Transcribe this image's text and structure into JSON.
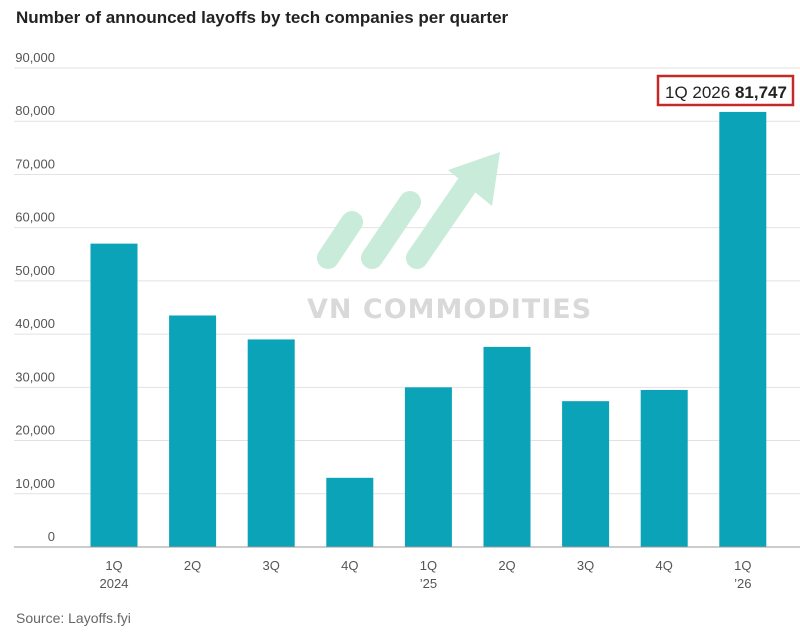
{
  "chart_data": {
    "type": "bar",
    "title": "Number of announced layoffs by tech companies per quarter",
    "categories": [
      {
        "line1": "1Q",
        "line2": "2024"
      },
      {
        "line1": "2Q",
        "line2": ""
      },
      {
        "line1": "3Q",
        "line2": ""
      },
      {
        "line1": "4Q",
        "line2": ""
      },
      {
        "line1": "1Q",
        "line2": "’25"
      },
      {
        "line1": "2Q",
        "line2": ""
      },
      {
        "line1": "3Q",
        "line2": ""
      },
      {
        "line1": "4Q",
        "line2": ""
      },
      {
        "line1": "1Q",
        "line2": "’26"
      }
    ],
    "values": [
      57000,
      43500,
      39000,
      13000,
      30000,
      37600,
      27400,
      29500,
      81747
    ],
    "ylim": [
      0,
      90000
    ],
    "yticks": [
      {
        "value": 0,
        "label": "0"
      },
      {
        "value": 10000,
        "label": "10,000"
      },
      {
        "value": 20000,
        "label": "20,000"
      },
      {
        "value": 30000,
        "label": "30,000"
      },
      {
        "value": 40000,
        "label": "40,000"
      },
      {
        "value": 50000,
        "label": "50,000"
      },
      {
        "value": 60000,
        "label": "60,000"
      },
      {
        "value": 70000,
        "label": "70,000"
      },
      {
        "value": 80000,
        "label": "80,000"
      },
      {
        "value": 90000,
        "label": "90,000"
      }
    ],
    "grid": true,
    "bar_color": "#0aa3b8",
    "annotation": {
      "label": "1Q 2026",
      "value_text": "81,747",
      "border_color": "#c62828"
    }
  },
  "watermark": {
    "text": "VN COMMODITIES",
    "color": "#d9d9d9",
    "logo_color": "#c8ecd9"
  },
  "source": "Source: Layoffs.fyi"
}
